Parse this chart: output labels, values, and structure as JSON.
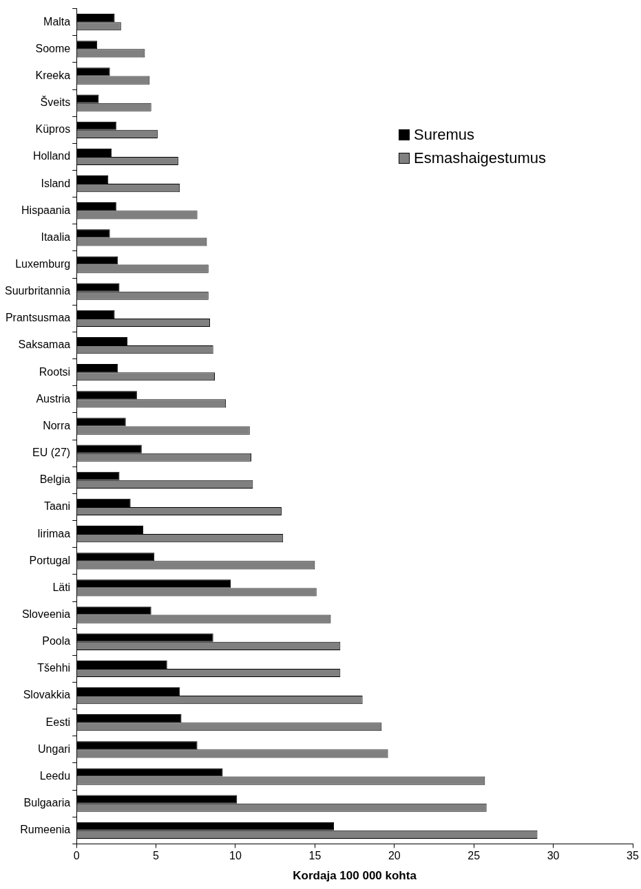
{
  "chart_data": {
    "type": "bar",
    "orientation": "horizontal",
    "xlabel": "Kordaja 100 000 kohta",
    "categories": [
      "Malta",
      "Soome",
      "Kreeka",
      "Šveits",
      "Küpros",
      "Holland",
      "Island",
      "Hispaania",
      "Itaalia",
      "Luxemburg",
      "Suurbritannia",
      "Prantsusmaa",
      "Saksamaa",
      "Rootsi",
      "Austria",
      "Norra",
      "EU (27)",
      "Belgia",
      "Taani",
      "Iirimaa",
      "Portugal",
      "Läti",
      "Sloveenia",
      "Poola",
      "Tšehhi",
      "Slovakkia",
      "Eesti",
      "Ungari",
      "Leedu",
      "Bulgaaria",
      "Rumeenia"
    ],
    "series": [
      {
        "name": "Suremus",
        "color": "#000000",
        "values": [
          2.4,
          1.3,
          2.1,
          1.4,
          2.5,
          2.2,
          2.0,
          2.5,
          2.1,
          2.6,
          2.7,
          2.4,
          3.2,
          2.6,
          3.8,
          3.1,
          4.1,
          2.7,
          3.4,
          4.2,
          4.9,
          9.7,
          4.7,
          8.6,
          5.7,
          6.5,
          6.6,
          7.6,
          9.2,
          10.1,
          16.2
        ]
      },
      {
        "name": "Esmashaigestumus",
        "color": "#808080",
        "values": [
          2.8,
          4.3,
          4.6,
          4.7,
          5.1,
          6.4,
          6.5,
          7.6,
          8.2,
          8.3,
          8.3,
          8.4,
          8.6,
          8.7,
          9.4,
          10.9,
          11.0,
          11.1,
          12.9,
          13.0,
          15.0,
          15.1,
          16.0,
          16.6,
          16.6,
          18.0,
          19.2,
          19.6,
          25.7,
          25.8,
          29.0
        ]
      }
    ],
    "xlim": [
      0,
      35
    ],
    "xticks": [
      0,
      5,
      10,
      15,
      20,
      25,
      30,
      35
    ],
    "grid": false,
    "legend": "top right"
  }
}
